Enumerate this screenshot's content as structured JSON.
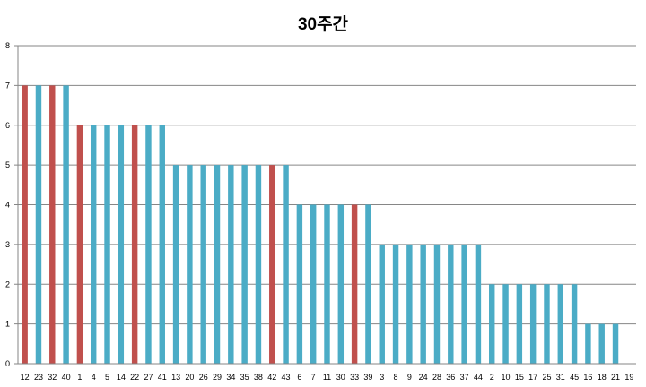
{
  "chart_data": {
    "type": "bar",
    "title": "30주간",
    "xlabel": "",
    "ylabel": "",
    "ylim": [
      0,
      8
    ],
    "yticks": [
      0,
      1,
      2,
      3,
      4,
      5,
      6,
      7,
      8
    ],
    "grid": true,
    "legend": "none",
    "colors": {
      "default": "#4bacc6",
      "highlight": "#c0504d",
      "grid": "#868686",
      "axis": "#868686"
    },
    "categories": [
      "12",
      "23",
      "32",
      "40",
      "1",
      "4",
      "5",
      "14",
      "22",
      "27",
      "41",
      "13",
      "20",
      "26",
      "29",
      "34",
      "35",
      "38",
      "42",
      "43",
      "6",
      "7",
      "11",
      "30",
      "33",
      "39",
      "3",
      "8",
      "9",
      "24",
      "28",
      "36",
      "37",
      "44",
      "2",
      "10",
      "15",
      "17",
      "25",
      "31",
      "45",
      "16",
      "18",
      "21",
      "19"
    ],
    "values": [
      7,
      7,
      7,
      7,
      6,
      6,
      6,
      6,
      6,
      6,
      6,
      5,
      5,
      5,
      5,
      5,
      5,
      5,
      5,
      5,
      4,
      4,
      4,
      4,
      4,
      4,
      3,
      3,
      3,
      3,
      3,
      3,
      3,
      3,
      2,
      2,
      2,
      2,
      2,
      2,
      2,
      1,
      1,
      1,
      0
    ],
    "highlighted": [
      "12",
      "32",
      "1",
      "22",
      "42",
      "33"
    ]
  }
}
